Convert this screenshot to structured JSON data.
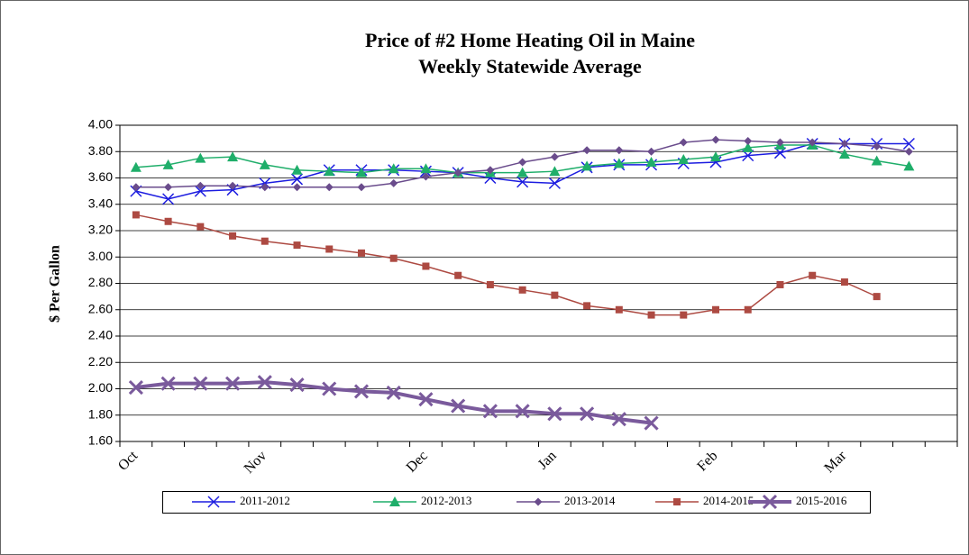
{
  "chart_data": {
    "type": "line",
    "title": "Price of #2 Home Heating Oil in Maine",
    "subtitle": "Weekly Statewide Average",
    "y_label": "$ Per Gallon",
    "categories": [
      "Oct",
      null,
      null,
      null,
      "Nov",
      null,
      null,
      null,
      null,
      "Dec",
      null,
      null,
      null,
      "Jan",
      null,
      null,
      null,
      null,
      "Feb",
      null,
      null,
      null,
      "Mar",
      null,
      null,
      null
    ],
    "series": [
      {
        "name": "2011-2012",
        "color": "#1c1ce0",
        "marker": "x",
        "line_width": 1.5,
        "values": [
          3.5,
          3.44,
          3.5,
          3.51,
          3.56,
          3.59,
          3.66,
          3.66,
          3.66,
          3.65,
          3.64,
          3.6,
          3.57,
          3.56,
          3.68,
          3.7,
          3.7,
          3.71,
          3.72,
          3.77,
          3.79,
          3.86,
          3.86,
          3.86,
          3.86,
          null
        ]
      },
      {
        "name": "2012-2013",
        "color": "#1fae6a",
        "marker": "triangle",
        "line_width": 1.5,
        "values": [
          3.68,
          3.7,
          3.75,
          3.76,
          3.7,
          3.66,
          3.65,
          3.64,
          3.67,
          3.67,
          3.64,
          3.64,
          3.64,
          3.65,
          3.69,
          3.71,
          3.72,
          3.74,
          3.76,
          3.83,
          3.85,
          3.85,
          3.78,
          3.73,
          3.69,
          null
        ]
      },
      {
        "name": "2013-2014",
        "color": "#6a4c8c",
        "marker": "diamond",
        "line_width": 1.5,
        "values": [
          3.53,
          3.53,
          3.54,
          3.54,
          3.53,
          3.53,
          3.53,
          3.53,
          3.56,
          3.61,
          3.64,
          3.66,
          3.72,
          3.76,
          3.81,
          3.81,
          3.8,
          3.87,
          3.89,
          3.88,
          3.87,
          3.87,
          3.86,
          3.84,
          3.8,
          null
        ]
      },
      {
        "name": "2014-2015",
        "color": "#ad4a42",
        "marker": "square",
        "line_width": 1.5,
        "values": [
          3.32,
          3.27,
          3.23,
          3.16,
          3.12,
          3.09,
          3.06,
          3.03,
          2.99,
          2.93,
          2.86,
          2.79,
          2.75,
          2.71,
          2.63,
          2.6,
          2.56,
          2.56,
          2.6,
          2.6,
          2.79,
          2.86,
          2.81,
          2.7,
          null,
          null
        ]
      },
      {
        "name": "2015-2016",
        "color": "#7a5a9c",
        "marker": "x",
        "line_width": 4,
        "values": [
          2.01,
          2.04,
          2.04,
          2.04,
          2.05,
          2.03,
          2.0,
          1.98,
          1.97,
          1.92,
          1.87,
          1.83,
          1.83,
          1.81,
          1.81,
          1.77,
          1.74,
          null,
          null,
          null,
          null,
          null,
          null,
          null,
          null,
          null
        ]
      }
    ],
    "ylim": [
      1.6,
      4.0
    ],
    "yticks": [
      {
        "value": 1.6,
        "label": "1.60"
      },
      {
        "value": 1.8,
        "label": "1.80"
      },
      {
        "value": 2.0,
        "label": "2.00"
      },
      {
        "value": 2.2,
        "label": "2.20"
      },
      {
        "value": 2.4,
        "label": "2.40"
      },
      {
        "value": 2.6,
        "label": "2.60"
      },
      {
        "value": 2.8,
        "label": "2.80"
      },
      {
        "value": 3.0,
        "label": "3.00"
      },
      {
        "value": 3.2,
        "label": "3.20"
      },
      {
        "value": 3.4,
        "label": "3.40"
      },
      {
        "value": 3.6,
        "label": "3.60"
      },
      {
        "value": 3.8,
        "label": "3.80"
      },
      {
        "value": 4.0,
        "label": "4.00"
      }
    ],
    "grid": true,
    "legend": "bottom"
  }
}
